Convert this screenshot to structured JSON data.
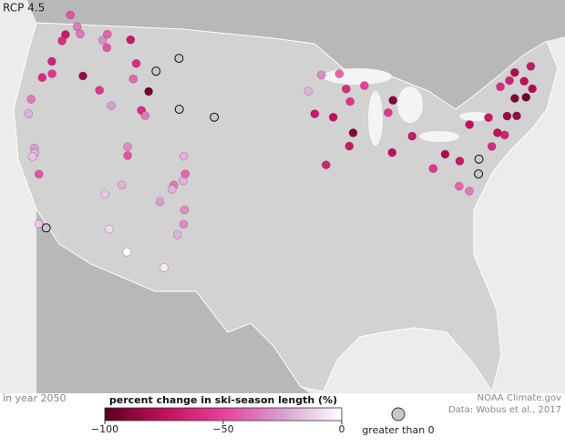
{
  "title": "RCP 4.5",
  "subtitle": "in year 2050",
  "legend": {
    "title": "percent change in ski-season length (%)",
    "range": [
      -100,
      0
    ],
    "ticks": [
      {
        "value": -100,
        "label": "−100"
      },
      {
        "value": -50,
        "label": "−50"
      },
      0
    ],
    "positive_label": "greater than 0"
  },
  "credits": [
    "NOAA Climate.gov",
    "Data: Wobus et al., 2017"
  ],
  "sites": [
    {
      "lon": -121.4,
      "lat": 47.4,
      "value": -70
    },
    {
      "lon": -121.7,
      "lat": 48.8,
      "value": -45
    },
    {
      "lon": -120.5,
      "lat": 48.2,
      "value": -35
    },
    {
      "lon": -117.3,
      "lat": 47.9,
      "value": -30
    },
    {
      "lon": -121.5,
      "lat": 46.9,
      "value": -60
    },
    {
      "lon": -117.0,
      "lat": 48.4,
      "value": -40
    },
    {
      "lon": -119.9,
      "lat": 47.8,
      "value": -35
    },
    {
      "lon": -121.7,
      "lat": 45.3,
      "value": -65
    },
    {
      "lon": -122.0,
      "lat": 44.0,
      "value": -60
    },
    {
      "lon": -121.2,
      "lat": 44.5,
      "value": -55
    },
    {
      "lon": -118.1,
      "lat": 45.1,
      "value": -85
    },
    {
      "lon": -122.2,
      "lat": 42.3,
      "value": -35
    },
    {
      "lon": -120.2,
      "lat": 39.2,
      "value": -25
    },
    {
      "lon": -120.0,
      "lat": 38.9,
      "value": -20
    },
    {
      "lon": -119.0,
      "lat": 37.6,
      "value": -45
    },
    {
      "lon": -120.1,
      "lat": 38.6,
      "value": -15
    },
    {
      "lon": -116.9,
      "lat": 34.2,
      "value": 5
    },
    {
      "lon": -117.6,
      "lat": 34.3,
      "value": -15
    },
    {
      "lon": -121.9,
      "lat": 41.3,
      "value": -20
    },
    {
      "lon": -114.4,
      "lat": 43.7,
      "value": -25
    },
    {
      "lon": -116.0,
      "lat": 44.5,
      "value": -55
    },
    {
      "lon": -116.6,
      "lat": 47.5,
      "value": -45
    },
    {
      "lon": -111.3,
      "lat": 43.9,
      "value": -60
    },
    {
      "lon": -114.3,
      "lat": 48.5,
      "value": -70
    },
    {
      "lon": -111.0,
      "lat": 45.3,
      "value": -95
    },
    {
      "lon": -110.7,
      "lat": 46.8,
      "value": 5
    },
    {
      "lon": -112.9,
      "lat": 45.9,
      "value": -40
    },
    {
      "lon": -113.0,
      "lat": 47.0,
      "value": -60
    },
    {
      "lon": -108.5,
      "lat": 48.0,
      "value": 5
    },
    {
      "lon": -110.8,
      "lat": 43.6,
      "value": -35
    },
    {
      "lon": -106.3,
      "lat": 41.3,
      "value": -20
    },
    {
      "lon": -107.5,
      "lat": 44.5,
      "value": 5
    },
    {
      "lon": -111.6,
      "lat": 40.6,
      "value": -45
    },
    {
      "lon": -111.8,
      "lat": 41.2,
      "value": -30
    },
    {
      "lon": -111.5,
      "lat": 38.5,
      "value": -20
    },
    {
      "lon": -112.8,
      "lat": 37.6,
      "value": -15
    },
    {
      "lon": -106.0,
      "lat": 39.6,
      "value": -20
    },
    {
      "lon": -106.8,
      "lat": 39.2,
      "value": -35
    },
    {
      "lon": -105.9,
      "lat": 40.1,
      "value": -40
    },
    {
      "lon": -107.8,
      "lat": 37.9,
      "value": -25
    },
    {
      "lon": -106.9,
      "lat": 38.9,
      "value": -20
    },
    {
      "lon": -105.5,
      "lat": 37.6,
      "value": -30
    },
    {
      "lon": -105.8,
      "lat": 35.8,
      "value": -20
    },
    {
      "lon": -105.4,
      "lat": 36.6,
      "value": -30
    },
    {
      "lon": -106.5,
      "lat": 33.4,
      "value": -5
    },
    {
      "lon": -111.7,
      "lat": 35.3,
      "value": -10
    },
    {
      "lon": -109.8,
      "lat": 34.0,
      "value": 0
    },
    {
      "lon": -103.8,
      "lat": 44.3,
      "value": 5
    },
    {
      "lon": -92.5,
      "lat": 47.5,
      "value": -30
    },
    {
      "lon": -94.0,
      "lat": 46.4,
      "value": -20
    },
    {
      "lon": -93.4,
      "lat": 44.8,
      "value": -70
    },
    {
      "lon": -90.5,
      "lat": 47.5,
      "value": -40
    },
    {
      "lon": -89.6,
      "lat": 45.5,
      "value": -55
    },
    {
      "lon": -91.5,
      "lat": 44.5,
      "value": -75
    },
    {
      "lon": -89.6,
      "lat": 43.3,
      "value": -90
    },
    {
      "lon": -89.9,
      "lat": 46.4,
      "value": -60
    },
    {
      "lon": -85.1,
      "lat": 45.2,
      "value": -90
    },
    {
      "lon": -85.8,
      "lat": 44.4,
      "value": -55
    },
    {
      "lon": -83.8,
      "lat": 42.5,
      "value": -70
    },
    {
      "lon": -87.9,
      "lat": 46.5,
      "value": -50
    },
    {
      "lon": -92.5,
      "lat": 41.2,
      "value": -65
    },
    {
      "lon": -90.1,
      "lat": 42.4,
      "value": -70
    },
    {
      "lon": -86.0,
      "lat": 41.6,
      "value": -75
    },
    {
      "lon": -81.0,
      "lat": 40.8,
      "value": -80
    },
    {
      "lon": -82.4,
      "lat": 40.0,
      "value": -55
    },
    {
      "lon": -79.8,
      "lat": 40.1,
      "value": -70
    },
    {
      "lon": -80.4,
      "lat": 38.4,
      "value": -40
    },
    {
      "lon": -79.6,
      "lat": 37.9,
      "value": -35
    },
    {
      "lon": -78.0,
      "lat": 39.9,
      "value": 5
    },
    {
      "lon": -78.4,
      "lat": 38.9,
      "value": 5
    },
    {
      "lon": -78.0,
      "lat": 42.4,
      "value": -75
    },
    {
      "lon": -76.0,
      "lat": 42.5,
      "value": -70
    },
    {
      "lon": -74.2,
      "lat": 42.2,
      "value": -85
    },
    {
      "lon": -73.9,
      "lat": 44.3,
      "value": -60
    },
    {
      "lon": -72.8,
      "lat": 44.5,
      "value": -65
    },
    {
      "lon": -72.0,
      "lat": 44.9,
      "value": -80
    },
    {
      "lon": -71.4,
      "lat": 44.1,
      "value": -75
    },
    {
      "lon": -70.2,
      "lat": 44.9,
      "value": -70
    },
    {
      "lon": -72.9,
      "lat": 43.2,
      "value": -90
    },
    {
      "lon": -71.8,
      "lat": 43.0,
      "value": -95
    },
    {
      "lon": -73.3,
      "lat": 42.0,
      "value": -85
    },
    {
      "lon": -75.6,
      "lat": 41.3,
      "value": -75
    },
    {
      "lon": -76.5,
      "lat": 40.5,
      "value": -60
    },
    {
      "lon": -75.0,
      "lat": 41.0,
      "value": -65
    },
    {
      "lon": -70.9,
      "lat": 43.4,
      "value": -80
    }
  ]
}
